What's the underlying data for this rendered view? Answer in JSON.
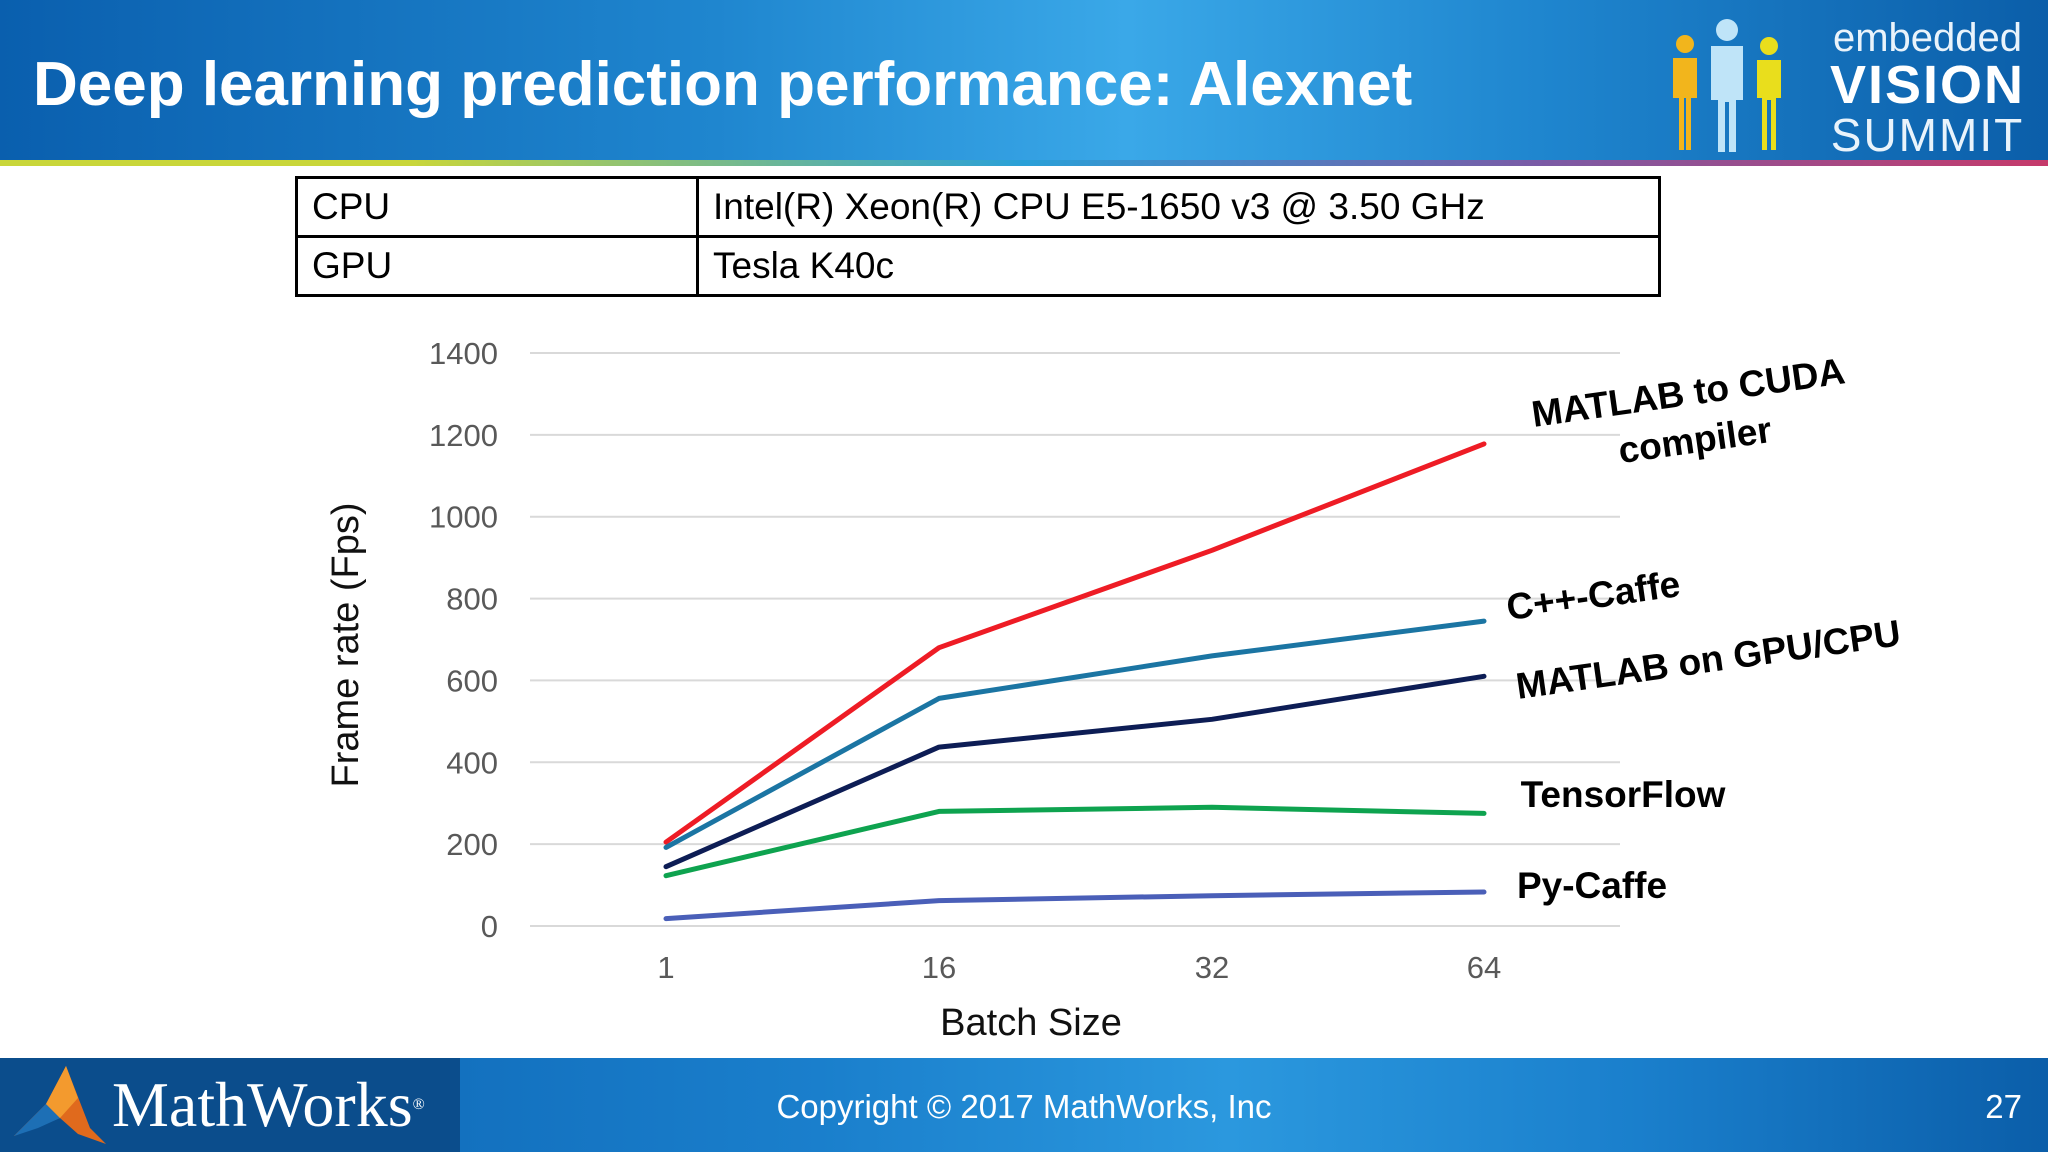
{
  "slide": {
    "title": "Deep learning prediction performance: Alexnet",
    "logo": {
      "line1": "embedded",
      "line2": "VISION",
      "line3": "SUMMIT"
    },
    "footer": {
      "brand": "MathWorks",
      "copyright": "Copyright © 2017 MathWorks, Inc",
      "page": "27"
    },
    "colors": {
      "header": "#1f86cf",
      "footer": "#1a7fcc"
    }
  },
  "spec_table": [
    {
      "key": "CPU",
      "value": "Intel(R) Xeon(R) CPU E5-1650 v3 @ 3.50 GHz"
    },
    {
      "key": "GPU",
      "value": "Tesla K40c"
    }
  ],
  "chart_data": {
    "type": "line",
    "xlabel": "Batch Size",
    "ylabel": "Frame rate (Fps)",
    "categories": [
      "1",
      "16",
      "32",
      "64"
    ],
    "ylim": [
      0,
      1400
    ],
    "yticks": [
      "0",
      "200",
      "400",
      "600",
      "800",
      "1000",
      "1200",
      "1400"
    ],
    "grid": true,
    "series": [
      {
        "name": "MATLAB to CUDA compiler",
        "label_lines": [
          "MATLAB to CUDA",
          "compiler"
        ],
        "color": "#ee1c25",
        "values": [
          205,
          680,
          918,
          1178
        ]
      },
      {
        "name": "C++-Caffe",
        "label_lines": [
          "C++-Caffe"
        ],
        "color": "#1b75a3",
        "values": [
          192,
          556,
          660,
          745
        ]
      },
      {
        "name": "MATLAB on GPU/CPU",
        "label_lines": [
          "MATLAB on GPU/CPU"
        ],
        "color": "#0d1d55",
        "values": [
          145,
          437,
          505,
          610
        ]
      },
      {
        "name": "TensorFlow",
        "label_lines": [
          "TensorFlow"
        ],
        "color": "#0ea34f",
        "values": [
          123,
          280,
          290,
          275
        ]
      },
      {
        "name": "Py-Caffe",
        "label_lines": [
          "Py-Caffe"
        ],
        "color": "#4a5fb8",
        "values": [
          18,
          62,
          74,
          83
        ]
      }
    ]
  }
}
